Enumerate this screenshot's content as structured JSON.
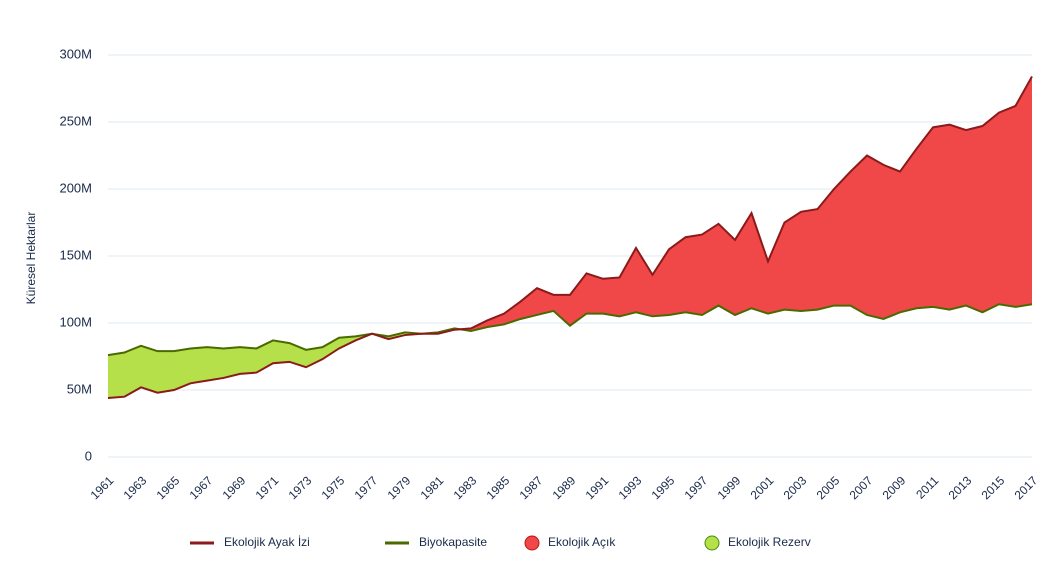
{
  "chart_data": {
    "type": "line",
    "y_label": "Küresel Hektarlar",
    "x": [
      1961,
      1962,
      1963,
      1964,
      1965,
      1966,
      1967,
      1968,
      1969,
      1970,
      1971,
      1972,
      1973,
      1974,
      1975,
      1976,
      1977,
      1978,
      1979,
      1980,
      1981,
      1982,
      1983,
      1984,
      1985,
      1986,
      1987,
      1988,
      1989,
      1990,
      1991,
      1992,
      1993,
      1994,
      1995,
      1996,
      1997,
      1998,
      1999,
      2000,
      2001,
      2002,
      2003,
      2004,
      2005,
      2006,
      2007,
      2008,
      2009,
      2010,
      2011,
      2012,
      2013,
      2014,
      2015,
      2016,
      2017
    ],
    "xlim": [
      1961,
      2017
    ],
    "xticks": [
      1961,
      1963,
      1965,
      1967,
      1969,
      1971,
      1973,
      1975,
      1977,
      1979,
      1981,
      1983,
      1985,
      1987,
      1989,
      1991,
      1993,
      1995,
      1997,
      1999,
      2001,
      2003,
      2005,
      2007,
      2009,
      2011,
      2013,
      2015,
      2017
    ],
    "ylim": [
      0,
      300
    ],
    "yticks": [
      0,
      {
        "value": 50,
        "label": "50M"
      },
      {
        "value": 100,
        "label": "100M"
      },
      {
        "value": 150,
        "label": "150M"
      },
      {
        "value": 200,
        "label": "200M"
      },
      {
        "value": 250,
        "label": "250M"
      },
      {
        "value": 300,
        "label": "300M"
      }
    ],
    "grid": true,
    "series": [
      {
        "name": "Ekolojik Ayak İzi",
        "color": "#8b1a1a",
        "values": [
          44,
          45,
          52,
          48,
          50,
          55,
          57,
          59,
          62,
          63,
          70,
          71,
          67,
          73,
          81,
          87,
          92,
          88,
          91,
          92,
          92,
          95,
          96,
          102,
          107,
          116,
          126,
          121,
          121,
          137,
          133,
          134,
          156,
          136,
          155,
          164,
          166,
          174,
          162,
          182,
          146,
          175,
          183,
          185,
          200,
          213,
          225,
          218,
          213,
          230,
          246,
          248,
          244,
          247,
          257,
          262,
          284
        ]
      },
      {
        "name": "Biyokapasite",
        "color": "#4a6a00",
        "values": [
          76,
          78,
          83,
          79,
          79,
          81,
          82,
          81,
          82,
          81,
          87,
          85,
          80,
          82,
          89,
          90,
          92,
          90,
          93,
          92,
          93,
          96,
          94,
          97,
          99,
          103,
          106,
          109,
          98,
          107,
          107,
          105,
          108,
          105,
          106,
          108,
          106,
          113,
          106,
          111,
          107,
          110,
          109,
          110,
          113,
          113,
          106,
          103,
          108,
          111,
          112,
          110,
          113,
          108,
          114,
          112,
          114
        ]
      }
    ],
    "areas": [
      {
        "name": "Ekolojik Açık",
        "color": "#f04848"
      },
      {
        "name": "Ekolojik Rezerv",
        "color": "#b5e04a"
      }
    ]
  }
}
